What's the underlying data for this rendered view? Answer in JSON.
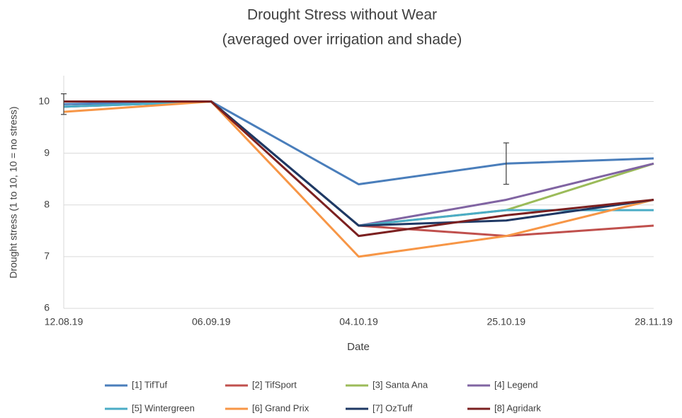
{
  "chart_data": {
    "type": "line",
    "title": "Drought Stress without Wear",
    "subtitle": "(averaged over irrigation and shade)",
    "xlabel": "Date",
    "ylabel": "Drought stress (1 to 10, 10 = no stress)",
    "categories": [
      "12.08.19",
      "06.09.19",
      "04.10.19",
      "25.10.19",
      "28.11.19"
    ],
    "series": [
      {
        "name": "[1] TifTuf",
        "color": "#4a7ebb",
        "values": [
          9.95,
          10,
          8.4,
          8.8,
          8.9
        ],
        "errors": [
          0.2,
          null,
          null,
          0.4,
          null
        ]
      },
      {
        "name": "[2] TifSport",
        "color": "#c0504d",
        "values": [
          10,
          10,
          7.6,
          7.4,
          7.6
        ]
      },
      {
        "name": "[3] Santa Ana",
        "color": "#9bbb59",
        "values": [
          9.9,
          10,
          7.6,
          7.9,
          8.8
        ]
      },
      {
        "name": "[4] Legend",
        "color": "#8064a2",
        "values": [
          9.9,
          10,
          7.6,
          8.1,
          8.8
        ]
      },
      {
        "name": "[5] Wintergreen",
        "color": "#4bacc6",
        "values": [
          9.9,
          10,
          7.6,
          7.9,
          7.9
        ]
      },
      {
        "name": "[6] Grand Prix",
        "color": "#f79646",
        "values": [
          9.8,
          10,
          7.0,
          7.4,
          8.1
        ]
      },
      {
        "name": "[7] OzTuff",
        "color": "#1f3864",
        "values": [
          10,
          10,
          7.6,
          7.7,
          8.1
        ]
      },
      {
        "name": "[8] Agridark",
        "color": "#7b2020",
        "values": [
          10,
          10,
          7.4,
          7.8,
          8.1
        ]
      }
    ],
    "ylim": [
      6,
      10.5
    ],
    "yticks": [
      6,
      7,
      8,
      9,
      10
    ],
    "grid": true
  }
}
